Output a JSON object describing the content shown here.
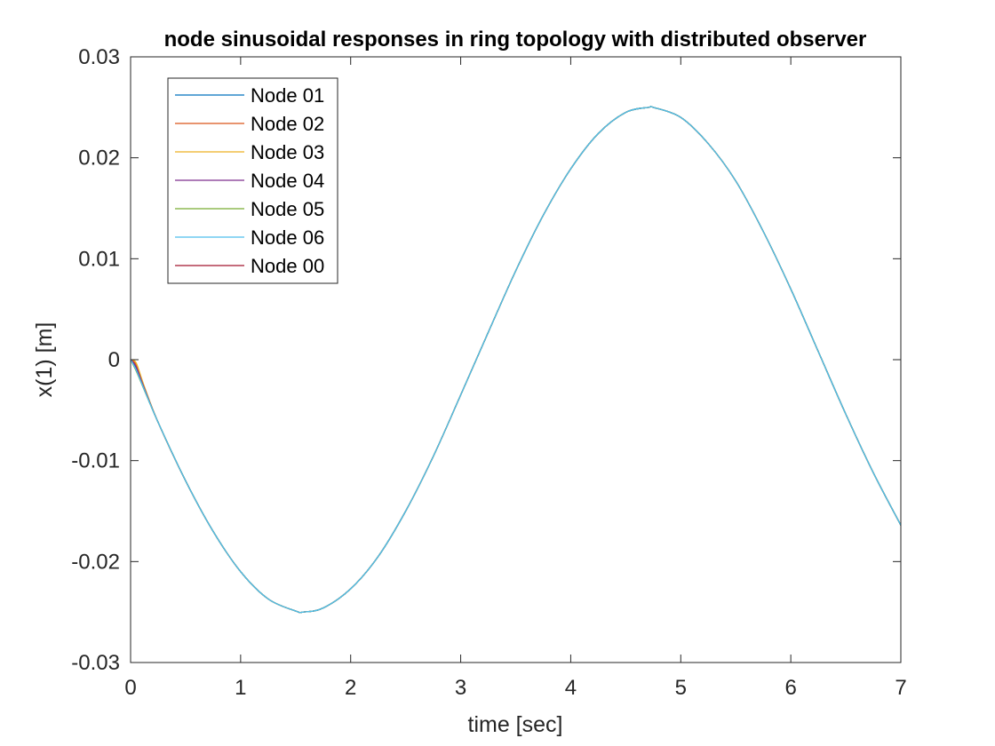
{
  "chart_data": {
    "type": "line",
    "title": "node sinusoidal responses in ring topology with distributed observer",
    "xlabel": "time [sec]",
    "ylabel": "x(1) [m]",
    "xlim": [
      0,
      7
    ],
    "ylim": [
      -0.03,
      0.03
    ],
    "xticks": [
      0,
      1,
      2,
      3,
      4,
      5,
      6,
      7
    ],
    "xtick_labels": [
      "0",
      "1",
      "2",
      "3",
      "4",
      "5",
      "6",
      "7"
    ],
    "yticks": [
      -0.03,
      -0.02,
      -0.01,
      0,
      0.01,
      0.02,
      0.03
    ],
    "ytick_labels": [
      "-0.03",
      "-0.02",
      "-0.01",
      "0",
      "0.01",
      "0.02",
      "0.03"
    ],
    "grid": false,
    "legend_position": "top-left",
    "x": [
      0,
      0.25,
      0.5,
      0.75,
      1,
      1.25,
      1.5,
      1.57,
      1.75,
      2,
      2.25,
      2.5,
      2.75,
      3,
      3.25,
      3.5,
      3.75,
      4,
      4.25,
      4.5,
      4.71,
      4.75,
      5,
      5.25,
      5.5,
      5.75,
      6,
      6.25,
      6.5,
      6.75,
      7
    ],
    "reference_values": [
      0,
      -0.0062,
      -0.012,
      -0.017,
      -0.021,
      -0.0237,
      -0.0249,
      -0.025,
      -0.0246,
      -0.0227,
      -0.0195,
      -0.015,
      -0.0096,
      -0.0035,
      0.0027,
      0.0088,
      0.0143,
      0.0189,
      0.0224,
      0.0245,
      0.025,
      0.025,
      0.024,
      0.0214,
      0.0177,
      0.0127,
      0.007,
      0.0008,
      -0.0054,
      -0.0112,
      -0.0164
    ],
    "node_initial_offsets": [
      0,
      0.0004,
      0.0006,
      0.0002,
      -0.0002,
      -0.0001,
      0
    ],
    "series": [
      {
        "name": "Node 01",
        "color": "#0072BD"
      },
      {
        "name": "Node 02",
        "color": "#D95319"
      },
      {
        "name": "Node 03",
        "color": "#EDB120"
      },
      {
        "name": "Node 04",
        "color": "#7E2F8E"
      },
      {
        "name": "Node 05",
        "color": "#77AC30"
      },
      {
        "name": "Node 06",
        "color": "#4DBEEE"
      },
      {
        "name": "Node 00",
        "color": "#A2142F"
      }
    ],
    "draw_order": [
      6,
      0,
      1,
      2,
      3,
      4,
      5
    ]
  }
}
